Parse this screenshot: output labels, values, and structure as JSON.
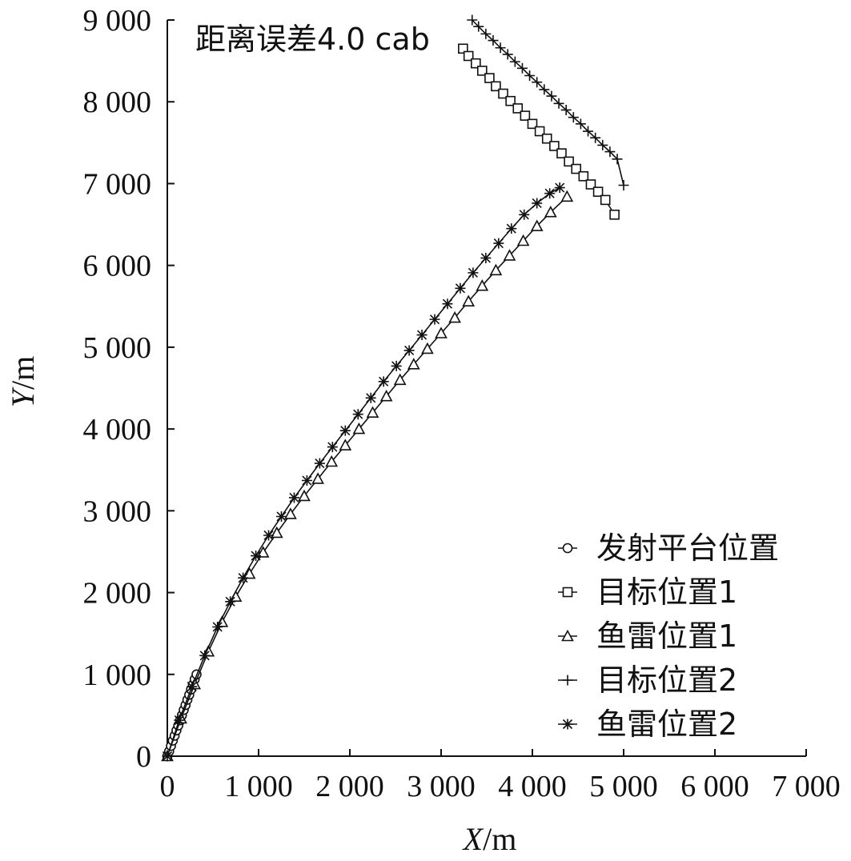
{
  "chart_data": {
    "type": "scatter",
    "annotation": "距离误差4.0 cab",
    "xlabel": {
      "var": "X",
      "unit": "/m"
    },
    "ylabel": {
      "var": "Y",
      "unit": "/m"
    },
    "xlim": [
      0,
      7000
    ],
    "ylim": [
      0,
      9000
    ],
    "xticks": [
      0,
      1000,
      2000,
      3000,
      4000,
      5000,
      6000,
      7000
    ],
    "xtick_labels": [
      "0",
      "1 000",
      "2 000",
      "3 000",
      "4 000",
      "5 000",
      "6 000",
      "7 000"
    ],
    "yticks": [
      0,
      1000,
      2000,
      3000,
      4000,
      5000,
      6000,
      7000,
      8000,
      9000
    ],
    "ytick_labels": [
      "0",
      "1 000",
      "2 000",
      "3 000",
      "4 000",
      "5 000",
      "6 000",
      "7 000",
      "8 000",
      "9 000"
    ],
    "grid": false,
    "legend_position": "bottom-right",
    "series": [
      {
        "name": "发射平台位置",
        "marker": "circle",
        "x": [
          0,
          20,
          40,
          60,
          80,
          100,
          120,
          140,
          160,
          180,
          200,
          220,
          240,
          260,
          280,
          300,
          320
        ],
        "y": [
          0,
          60,
          125,
          190,
          250,
          315,
          375,
          440,
          500,
          565,
          625,
          690,
          750,
          815,
          875,
          940,
          1000
        ]
      },
      {
        "name": "目标位置1",
        "marker": "square",
        "x": [
          3240,
          3300,
          3380,
          3450,
          3530,
          3600,
          3680,
          3760,
          3840,
          3920,
          4000,
          4080,
          4160,
          4240,
          4320,
          4400,
          4480,
          4560,
          4640,
          4720,
          4800,
          4900
        ],
        "y": [
          8650,
          8560,
          8470,
          8380,
          8290,
          8190,
          8100,
          8010,
          7920,
          7830,
          7730,
          7640,
          7550,
          7460,
          7370,
          7270,
          7180,
          7090,
          6990,
          6900,
          6800,
          6620
        ]
      },
      {
        "name": "鱼雷位置1",
        "marker": "triangle",
        "x": [
          0,
          150,
          300,
          450,
          600,
          750,
          900,
          1050,
          1200,
          1350,
          1500,
          1650,
          1800,
          1950,
          2100,
          2250,
          2400,
          2550,
          2700,
          2850,
          3000,
          3150,
          3300,
          3450,
          3600,
          3750,
          3900,
          4050,
          4200,
          4380
        ],
        "y": [
          0,
          460,
          880,
          1280,
          1640,
          1950,
          2230,
          2490,
          2730,
          2960,
          3180,
          3390,
          3600,
          3800,
          4000,
          4200,
          4400,
          4600,
          4790,
          4980,
          5170,
          5360,
          5560,
          5750,
          5940,
          6120,
          6300,
          6480,
          6650,
          6840
        ]
      },
      {
        "name": "目标位置2",
        "marker": "plus",
        "x": [
          3340,
          3410,
          3490,
          3570,
          3650,
          3730,
          3810,
          3890,
          3970,
          4050,
          4130,
          4210,
          4290,
          4370,
          4450,
          4530,
          4610,
          4690,
          4770,
          4850,
          4930,
          5000
        ],
        "y": [
          9000,
          8920,
          8830,
          8750,
          8660,
          8580,
          8490,
          8410,
          8320,
          8240,
          8150,
          8070,
          7980,
          7900,
          7810,
          7730,
          7640,
          7560,
          7470,
          7390,
          7300,
          6980
        ]
      },
      {
        "name": "鱼雷位置2",
        "marker": "asterisk",
        "x": [
          0,
          130,
          270,
          410,
          550,
          690,
          830,
          970,
          1110,
          1250,
          1390,
          1530,
          1670,
          1810,
          1950,
          2090,
          2230,
          2370,
          2510,
          2650,
          2790,
          2930,
          3070,
          3210,
          3350,
          3490,
          3630,
          3770,
          3910,
          4050,
          4190,
          4300
        ],
        "y": [
          0,
          440,
          850,
          1230,
          1580,
          1890,
          2180,
          2450,
          2700,
          2930,
          3160,
          3370,
          3580,
          3780,
          3980,
          4180,
          4380,
          4580,
          4770,
          4960,
          5150,
          5340,
          5530,
          5720,
          5910,
          6090,
          6270,
          6450,
          6620,
          6760,
          6880,
          6950
        ]
      }
    ]
  }
}
